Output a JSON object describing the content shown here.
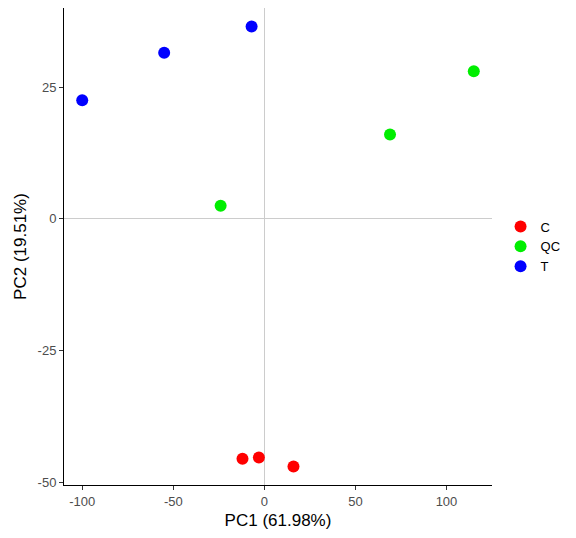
{
  "chart_data": {
    "type": "scatter",
    "x_label": "PC1 (61.98%)",
    "y_label": "PC2 (19.51%)",
    "xlim": [
      -110,
      125
    ],
    "ylim": [
      -50.5,
      40
    ],
    "xticks": [
      -100,
      -50,
      0,
      50,
      100
    ],
    "yticks": [
      -50,
      -25,
      0,
      25
    ],
    "grid": false,
    "legend": "right",
    "marker": "circle",
    "series": [
      {
        "name": "C",
        "color": "#ff0000",
        "x": [
          -12,
          -3,
          16
        ],
        "values": [
          -45.5,
          -45.3,
          -47
        ]
      },
      {
        "name": "QC",
        "color": "#00ee00",
        "x": [
          -24,
          69,
          115
        ],
        "values": [
          2.5,
          16,
          28
        ]
      },
      {
        "name": "T",
        "color": "#0000ff",
        "x": [
          -100,
          -55,
          -7
        ],
        "values": [
          22.5,
          31.5,
          36.5
        ]
      }
    ]
  }
}
